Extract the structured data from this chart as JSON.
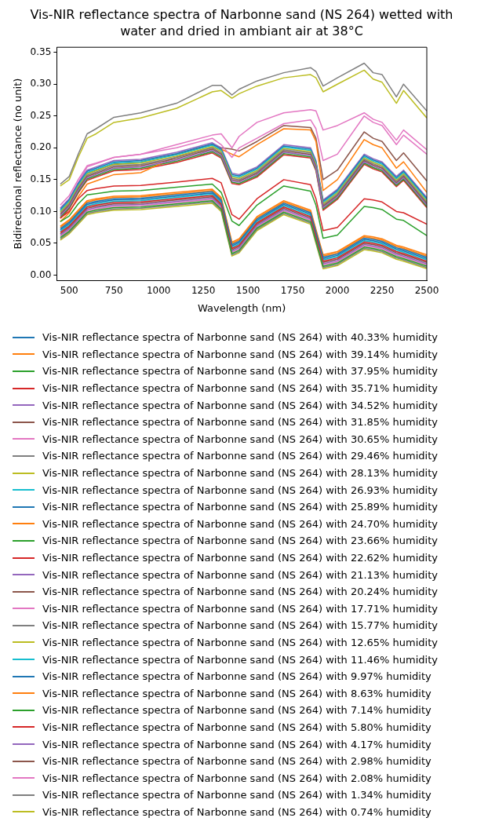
{
  "chart_data": {
    "type": "line",
    "title": "Vis-NIR reflectance spectra of Narbonne sand (NS 264) wetted with water and dried in ambiant air at 38°C",
    "xlabel": "Wavelength (nm)",
    "ylabel": "Bidirectional reflectance (no unit)",
    "x": [
      450,
      500,
      550,
      600,
      650,
      750,
      900,
      1100,
      1300,
      1350,
      1410,
      1450,
      1550,
      1700,
      1850,
      1880,
      1920,
      2000,
      2150,
      2200,
      2250,
      2330,
      2370,
      2500
    ],
    "xlim": [
      430,
      2500
    ],
    "xticks": [
      500,
      750,
      1000,
      1250,
      1500,
      1750,
      2000,
      2250,
      2500
    ],
    "ylim": [
      -0.008,
      0.358
    ],
    "yticks": [
      {
        "value": 0,
        "label": "0.00"
      },
      {
        "value": 0.05,
        "label": "0.05"
      },
      {
        "value": 0.1,
        "label": "0.10"
      },
      {
        "value": 0.15,
        "label": "0.15"
      },
      {
        "value": 0.2,
        "label": "0.20"
      },
      {
        "value": 0.25,
        "label": "0.25"
      },
      {
        "value": 0.3,
        "label": "0.30"
      },
      {
        "value": 0.35,
        "label": "0.35"
      }
    ],
    "grid": false,
    "legend": "bottom",
    "marker": "none",
    "line_style": "solid",
    "series": [
      {
        "name": "Vis-NIR reflectance spectra of Narbonne sand (NS 264) with 40.33% humidity",
        "color": "#1f77b4",
        "values": [
          0.073,
          0.083,
          0.098,
          0.113,
          0.116,
          0.12,
          0.121,
          0.126,
          0.131,
          0.118,
          0.048,
          0.053,
          0.088,
          0.113,
          0.098,
          0.068,
          0.028,
          0.033,
          0.058,
          0.056,
          0.053,
          0.043,
          0.04,
          0.028
        ]
      },
      {
        "name": "Vis-NIR reflectance spectra of Narbonne sand (NS 264) with 39.14% humidity",
        "color": "#ff7f0e",
        "values": [
          0.075,
          0.085,
          0.1,
          0.115,
          0.118,
          0.122,
          0.123,
          0.128,
          0.133,
          0.12,
          0.05,
          0.055,
          0.09,
          0.115,
          0.1,
          0.07,
          0.03,
          0.035,
          0.06,
          0.058,
          0.055,
          0.045,
          0.042,
          0.03
        ]
      },
      {
        "name": "Vis-NIR reflectance spectra of Narbonne sand (NS 264) with 37.95% humidity",
        "color": "#2ca02c",
        "values": [
          0.059,
          0.069,
          0.084,
          0.099,
          0.102,
          0.106,
          0.107,
          0.112,
          0.117,
          0.104,
          0.034,
          0.039,
          0.074,
          0.099,
          0.084,
          0.054,
          0.014,
          0.019,
          0.044,
          0.042,
          0.039,
          0.029,
          0.026,
          0.014
        ]
      },
      {
        "name": "Vis-NIR reflectance spectra of Narbonne sand (NS 264) with 35.71% humidity",
        "color": "#d62728",
        "values": [
          0.067,
          0.077,
          0.092,
          0.107,
          0.11,
          0.114,
          0.115,
          0.12,
          0.125,
          0.112,
          0.042,
          0.047,
          0.082,
          0.107,
          0.092,
          0.062,
          0.022,
          0.027,
          0.052,
          0.05,
          0.047,
          0.037,
          0.034,
          0.022
        ]
      },
      {
        "name": "Vis-NIR reflectance spectra of Narbonne sand (NS 264) with 34.52% humidity",
        "color": "#9467bd",
        "values": [
          0.063,
          0.073,
          0.088,
          0.103,
          0.106,
          0.11,
          0.111,
          0.116,
          0.121,
          0.108,
          0.038,
          0.043,
          0.078,
          0.103,
          0.088,
          0.058,
          0.018,
          0.023,
          0.048,
          0.046,
          0.043,
          0.033,
          0.03,
          0.018
        ]
      },
      {
        "name": "Vis-NIR reflectance spectra of Narbonne sand (NS 264) with 31.85% humidity",
        "color": "#8c564b",
        "values": [
          0.065,
          0.075,
          0.09,
          0.105,
          0.108,
          0.112,
          0.113,
          0.118,
          0.123,
          0.11,
          0.04,
          0.045,
          0.08,
          0.105,
          0.09,
          0.06,
          0.02,
          0.025,
          0.05,
          0.048,
          0.045,
          0.035,
          0.032,
          0.02
        ]
      },
      {
        "name": "Vis-NIR reflectance spectra of Narbonne sand (NS 264) with 30.65% humidity",
        "color": "#e377c2",
        "values": [
          0.061,
          0.071,
          0.086,
          0.101,
          0.104,
          0.108,
          0.109,
          0.114,
          0.119,
          0.106,
          0.036,
          0.041,
          0.076,
          0.101,
          0.086,
          0.056,
          0.016,
          0.021,
          0.046,
          0.044,
          0.041,
          0.031,
          0.028,
          0.016
        ]
      },
      {
        "name": "Vis-NIR reflectance spectra of Narbonne sand (NS 264) with 29.46% humidity",
        "color": "#7f7f7f",
        "values": [
          0.057,
          0.067,
          0.082,
          0.097,
          0.1,
          0.104,
          0.105,
          0.11,
          0.115,
          0.102,
          0.032,
          0.037,
          0.072,
          0.097,
          0.082,
          0.052,
          0.012,
          0.017,
          0.042,
          0.04,
          0.037,
          0.027,
          0.024,
          0.012
        ]
      },
      {
        "name": "Vis-NIR reflectance spectra of Narbonne sand (NS 264) with 28.13% humidity",
        "color": "#bcbd22",
        "values": [
          0.055,
          0.065,
          0.08,
          0.095,
          0.098,
          0.102,
          0.103,
          0.108,
          0.113,
          0.1,
          0.03,
          0.035,
          0.07,
          0.095,
          0.08,
          0.05,
          0.01,
          0.015,
          0.04,
          0.038,
          0.035,
          0.025,
          0.022,
          0.01
        ]
      },
      {
        "name": "Vis-NIR reflectance spectra of Narbonne sand (NS 264) with 26.93% humidity",
        "color": "#17becf",
        "values": [
          0.069,
          0.079,
          0.094,
          0.109,
          0.112,
          0.116,
          0.117,
          0.122,
          0.127,
          0.114,
          0.044,
          0.049,
          0.084,
          0.109,
          0.094,
          0.064,
          0.024,
          0.029,
          0.054,
          0.052,
          0.049,
          0.039,
          0.036,
          0.024
        ]
      },
      {
        "name": "Vis-NIR reflectance spectra of Narbonne sand (NS 264) with 25.89% humidity",
        "color": "#1f77b4",
        "values": [
          0.071,
          0.081,
          0.096,
          0.111,
          0.114,
          0.118,
          0.119,
          0.124,
          0.129,
          0.116,
          0.046,
          0.051,
          0.086,
          0.111,
          0.096,
          0.066,
          0.026,
          0.031,
          0.056,
          0.054,
          0.051,
          0.041,
          0.038,
          0.026
        ]
      },
      {
        "name": "Vis-NIR reflectance spectra of Narbonne sand (NS 264) with 24.70% humidity",
        "color": "#ff7f0e",
        "values": [
          0.077,
          0.087,
          0.102,
          0.117,
          0.12,
          0.124,
          0.125,
          0.13,
          0.135,
          0.122,
          0.052,
          0.057,
          0.092,
          0.117,
          0.102,
          0.072,
          0.032,
          0.037,
          0.062,
          0.06,
          0.057,
          0.047,
          0.044,
          0.032
        ]
      },
      {
        "name": "Vis-NIR reflectance spectra of Narbonne sand (NS 264) with 23.66% humidity",
        "color": "#2ca02c",
        "values": [
          0.084,
          0.093,
          0.112,
          0.126,
          0.128,
          0.132,
          0.133,
          0.138,
          0.143,
          0.13,
          0.085,
          0.078,
          0.11,
          0.14,
          0.132,
          0.11,
          0.058,
          0.063,
          0.108,
          0.106,
          0.103,
          0.088,
          0.086,
          0.062
        ]
      },
      {
        "name": "Vis-NIR reflectance spectra of Narbonne sand (NS 264) with 22.62% humidity",
        "color": "#d62728",
        "values": [
          0.09,
          0.1,
          0.12,
          0.133,
          0.136,
          0.14,
          0.141,
          0.146,
          0.152,
          0.145,
          0.095,
          0.088,
          0.12,
          0.15,
          0.142,
          0.12,
          0.07,
          0.075,
          0.12,
          0.118,
          0.115,
          0.1,
          0.098,
          0.08
        ]
      },
      {
        "name": "Vis-NIR reflectance spectra of Narbonne sand (NS 264) with 21.13% humidity",
        "color": "#9467bd",
        "values": [
          0.093,
          0.108,
          0.133,
          0.153,
          0.158,
          0.168,
          0.17,
          0.181,
          0.196,
          0.188,
          0.148,
          0.146,
          0.158,
          0.193,
          0.188,
          0.168,
          0.106,
          0.123,
          0.178,
          0.171,
          0.166,
          0.143,
          0.153,
          0.11
        ]
      },
      {
        "name": "Vis-NIR reflectance spectra of Narbonne sand (NS 264) with 20.24% humidity",
        "color": "#8c564b",
        "values": [
          0.095,
          0.11,
          0.135,
          0.155,
          0.16,
          0.17,
          0.172,
          0.183,
          0.198,
          0.19,
          0.15,
          0.148,
          0.16,
          0.195,
          0.19,
          0.17,
          0.108,
          0.125,
          0.18,
          0.173,
          0.168,
          0.145,
          0.155,
          0.112
        ]
      },
      {
        "name": "Vis-NIR reflectance spectra of Narbonne sand (NS 264) with 17.71% humidity",
        "color": "#e377c2",
        "values": [
          0.11,
          0.125,
          0.15,
          0.172,
          0.176,
          0.185,
          0.19,
          0.2,
          0.215,
          0.205,
          0.185,
          0.2,
          0.215,
          0.238,
          0.244,
          0.23,
          0.18,
          0.19,
          0.25,
          0.24,
          0.235,
          0.205,
          0.22,
          0.19
        ]
      },
      {
        "name": "Vis-NIR reflectance spectra of Narbonne sand (NS 264) with 15.77% humidity",
        "color": "#7f7f7f",
        "values": [
          0.097,
          0.112,
          0.137,
          0.157,
          0.162,
          0.172,
          0.174,
          0.185,
          0.2,
          0.192,
          0.152,
          0.15,
          0.162,
          0.197,
          0.192,
          0.172,
          0.11,
          0.127,
          0.182,
          0.175,
          0.17,
          0.147,
          0.157,
          0.114
        ]
      },
      {
        "name": "Vis-NIR reflectance spectra of Narbonne sand (NS 264) with 12.65% humidity",
        "color": "#bcbd22",
        "values": [
          0.099,
          0.114,
          0.139,
          0.159,
          0.164,
          0.174,
          0.176,
          0.187,
          0.202,
          0.194,
          0.154,
          0.152,
          0.164,
          0.199,
          0.194,
          0.174,
          0.112,
          0.129,
          0.184,
          0.177,
          0.172,
          0.149,
          0.159,
          0.116
        ]
      },
      {
        "name": "Vis-NIR reflectance spectra of Narbonne sand (NS 264) with 11.46% humidity",
        "color": "#17becf",
        "values": [
          0.101,
          0.116,
          0.141,
          0.161,
          0.166,
          0.176,
          0.178,
          0.189,
          0.204,
          0.196,
          0.156,
          0.154,
          0.166,
          0.201,
          0.196,
          0.176,
          0.114,
          0.131,
          0.186,
          0.179,
          0.174,
          0.151,
          0.161,
          0.118
        ]
      },
      {
        "name": "Vis-NIR reflectance spectra of Narbonne sand (NS 264) with 9.97% humidity",
        "color": "#1f77b4",
        "values": [
          0.103,
          0.118,
          0.143,
          0.163,
          0.168,
          0.178,
          0.18,
          0.191,
          0.206,
          0.198,
          0.158,
          0.156,
          0.168,
          0.203,
          0.198,
          0.178,
          0.116,
          0.133,
          0.188,
          0.181,
          0.176,
          0.153,
          0.163,
          0.12
        ]
      },
      {
        "name": "Vis-NIR reflectance spectra of Narbonne sand (NS 264) with 8.63% humidity",
        "color": "#ff7f0e",
        "values": [
          0.084,
          0.098,
          0.123,
          0.143,
          0.148,
          0.158,
          0.161,
          0.186,
          0.2,
          0.198,
          0.19,
          0.186,
          0.205,
          0.23,
          0.228,
          0.21,
          0.133,
          0.15,
          0.213,
          0.205,
          0.2,
          0.168,
          0.178,
          0.13
        ]
      },
      {
        "name": "Vis-NIR reflectance spectra of Narbonne sand (NS 264) with 7.14% humidity",
        "color": "#2ca02c",
        "values": [
          0.091,
          0.106,
          0.131,
          0.151,
          0.156,
          0.166,
          0.168,
          0.179,
          0.194,
          0.186,
          0.146,
          0.144,
          0.156,
          0.191,
          0.186,
          0.166,
          0.104,
          0.121,
          0.176,
          0.169,
          0.164,
          0.141,
          0.151,
          0.108
        ]
      },
      {
        "name": "Vis-NIR reflectance spectra of Narbonne sand (NS 264) with 5.80% humidity",
        "color": "#d62728",
        "values": [
          0.089,
          0.104,
          0.129,
          0.149,
          0.154,
          0.164,
          0.166,
          0.177,
          0.192,
          0.184,
          0.144,
          0.142,
          0.154,
          0.189,
          0.184,
          0.164,
          0.102,
          0.119,
          0.174,
          0.167,
          0.162,
          0.139,
          0.149,
          0.106
        ]
      },
      {
        "name": "Vis-NIR reflectance spectra of Narbonne sand (NS 264) with 4.17% humidity",
        "color": "#9467bd",
        "values": [
          0.105,
          0.12,
          0.145,
          0.165,
          0.17,
          0.18,
          0.182,
          0.193,
          0.208,
          0.2,
          0.16,
          0.158,
          0.17,
          0.205,
          0.2,
          0.18,
          0.118,
          0.135,
          0.19,
          0.183,
          0.178,
          0.155,
          0.165,
          0.122
        ]
      },
      {
        "name": "Vis-NIR reflectance spectra of Narbonne sand (NS 264) with 2.98% humidity",
        "color": "#8c564b",
        "values": [
          0.1,
          0.115,
          0.14,
          0.16,
          0.165,
          0.175,
          0.178,
          0.19,
          0.205,
          0.2,
          0.198,
          0.195,
          0.21,
          0.235,
          0.232,
          0.215,
          0.15,
          0.165,
          0.225,
          0.215,
          0.21,
          0.18,
          0.192,
          0.148
        ]
      },
      {
        "name": "Vis-NIR reflectance spectra of Narbonne sand (NS 264) with 2.08% humidity",
        "color": "#e377c2",
        "values": [
          0.105,
          0.12,
          0.145,
          0.17,
          0.175,
          0.185,
          0.19,
          0.205,
          0.22,
          0.222,
          0.2,
          0.218,
          0.24,
          0.255,
          0.26,
          0.258,
          0.228,
          0.235,
          0.255,
          0.245,
          0.24,
          0.212,
          0.228,
          0.197
        ]
      },
      {
        "name": "Vis-NIR reflectance spectra of Narbonne sand (NS 264) with 1.34% humidity",
        "color": "#7f7f7f",
        "values": [
          0.143,
          0.155,
          0.19,
          0.222,
          0.23,
          0.248,
          0.255,
          0.27,
          0.298,
          0.298,
          0.283,
          0.292,
          0.305,
          0.318,
          0.326,
          0.32,
          0.297,
          0.31,
          0.333,
          0.318,
          0.315,
          0.28,
          0.3,
          0.258
        ]
      },
      {
        "name": "Vis-NIR reflectance spectra of Narbonne sand (NS 264) with 0.74% humidity",
        "color": "#bcbd22",
        "values": [
          0.14,
          0.15,
          0.185,
          0.215,
          0.222,
          0.24,
          0.247,
          0.262,
          0.288,
          0.29,
          0.278,
          0.285,
          0.297,
          0.31,
          0.315,
          0.31,
          0.288,
          0.3,
          0.322,
          0.308,
          0.303,
          0.27,
          0.29,
          0.247
        ]
      }
    ]
  }
}
